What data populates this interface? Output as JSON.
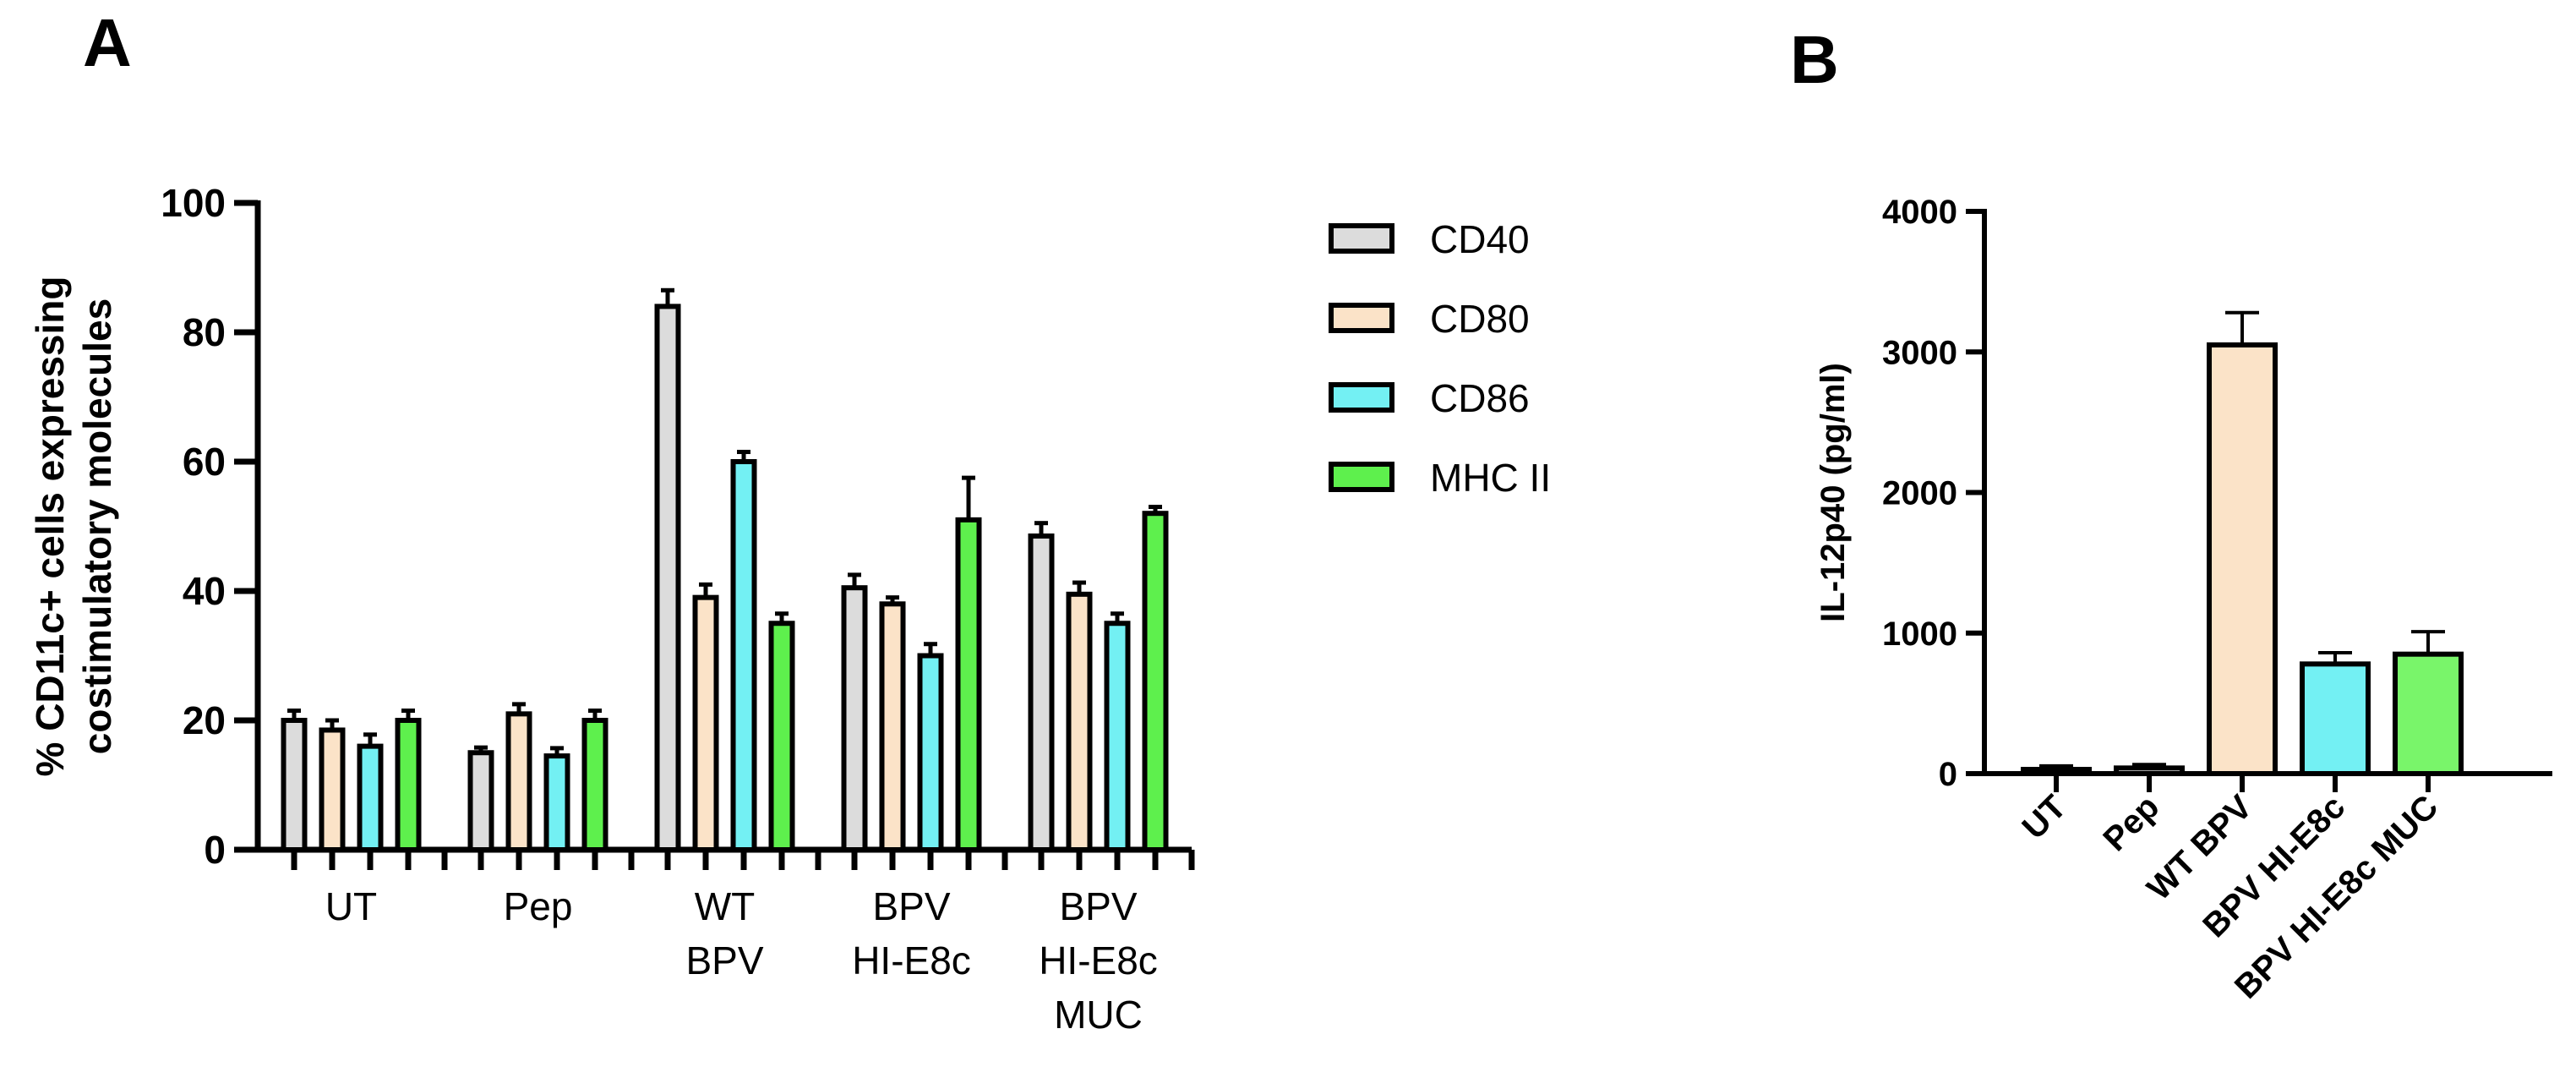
{
  "chart_data": [
    {
      "panel": "A",
      "type": "bar",
      "ylabel_lines": [
        "% CD11c+ cells expressing",
        "costimulatory molecules"
      ],
      "xlabel": "",
      "ylim": [
        0,
        100
      ],
      "yticks": [
        0,
        20,
        40,
        60,
        80,
        100
      ],
      "categories": [
        [
          "UT"
        ],
        [
          "Pep"
        ],
        [
          "WT",
          "BPV"
        ],
        [
          "BPV",
          "HI-E8c"
        ],
        [
          "BPV",
          "HI-E8c",
          "MUC"
        ]
      ],
      "series": [
        {
          "name": "CD40",
          "color": "#dcdcdc",
          "values": [
            20.0,
            15.0,
            84.0,
            40.5,
            48.5
          ],
          "errors": [
            1.5,
            0.8,
            2.5,
            2.0,
            2.0
          ]
        },
        {
          "name": "CD80",
          "color": "#fbe3c8",
          "values": [
            18.5,
            21.0,
            39.0,
            38.0,
            39.5
          ],
          "errors": [
            1.5,
            1.5,
            2.0,
            1.0,
            1.8
          ]
        },
        {
          "name": "CD86",
          "color": "#73f0f3",
          "values": [
            16.0,
            14.5,
            60.0,
            30.0,
            35.0
          ],
          "errors": [
            1.8,
            1.2,
            1.5,
            1.8,
            1.5
          ]
        },
        {
          "name": "MHC II",
          "color": "#5ef04d",
          "values": [
            20.0,
            20.0,
            35.0,
            51.0,
            52.0
          ],
          "errors": [
            1.5,
            1.5,
            1.5,
            6.5,
            1.0
          ]
        }
      ],
      "legend_position": "right"
    },
    {
      "panel": "B",
      "type": "bar",
      "ylabel": "IL-12p40 (pg/ml)",
      "xlabel": "",
      "ylim": [
        0,
        4000
      ],
      "yticks": [
        0,
        1000,
        2000,
        3000,
        4000
      ],
      "categories": [
        "UT",
        "Pep",
        "WT BPV",
        "BPV HI-E8c",
        "BPV HI-E8c MUC"
      ],
      "colors": [
        "#ffffff",
        "#ffffff",
        "#fbe3c8",
        "#73f0f3",
        "#79f56a"
      ],
      "values": [
        30,
        40,
        3050,
        780,
        850
      ],
      "errors": [
        25,
        25,
        230,
        80,
        160
      ]
    }
  ],
  "panels": {
    "a_label": "A",
    "b_label": "B"
  }
}
